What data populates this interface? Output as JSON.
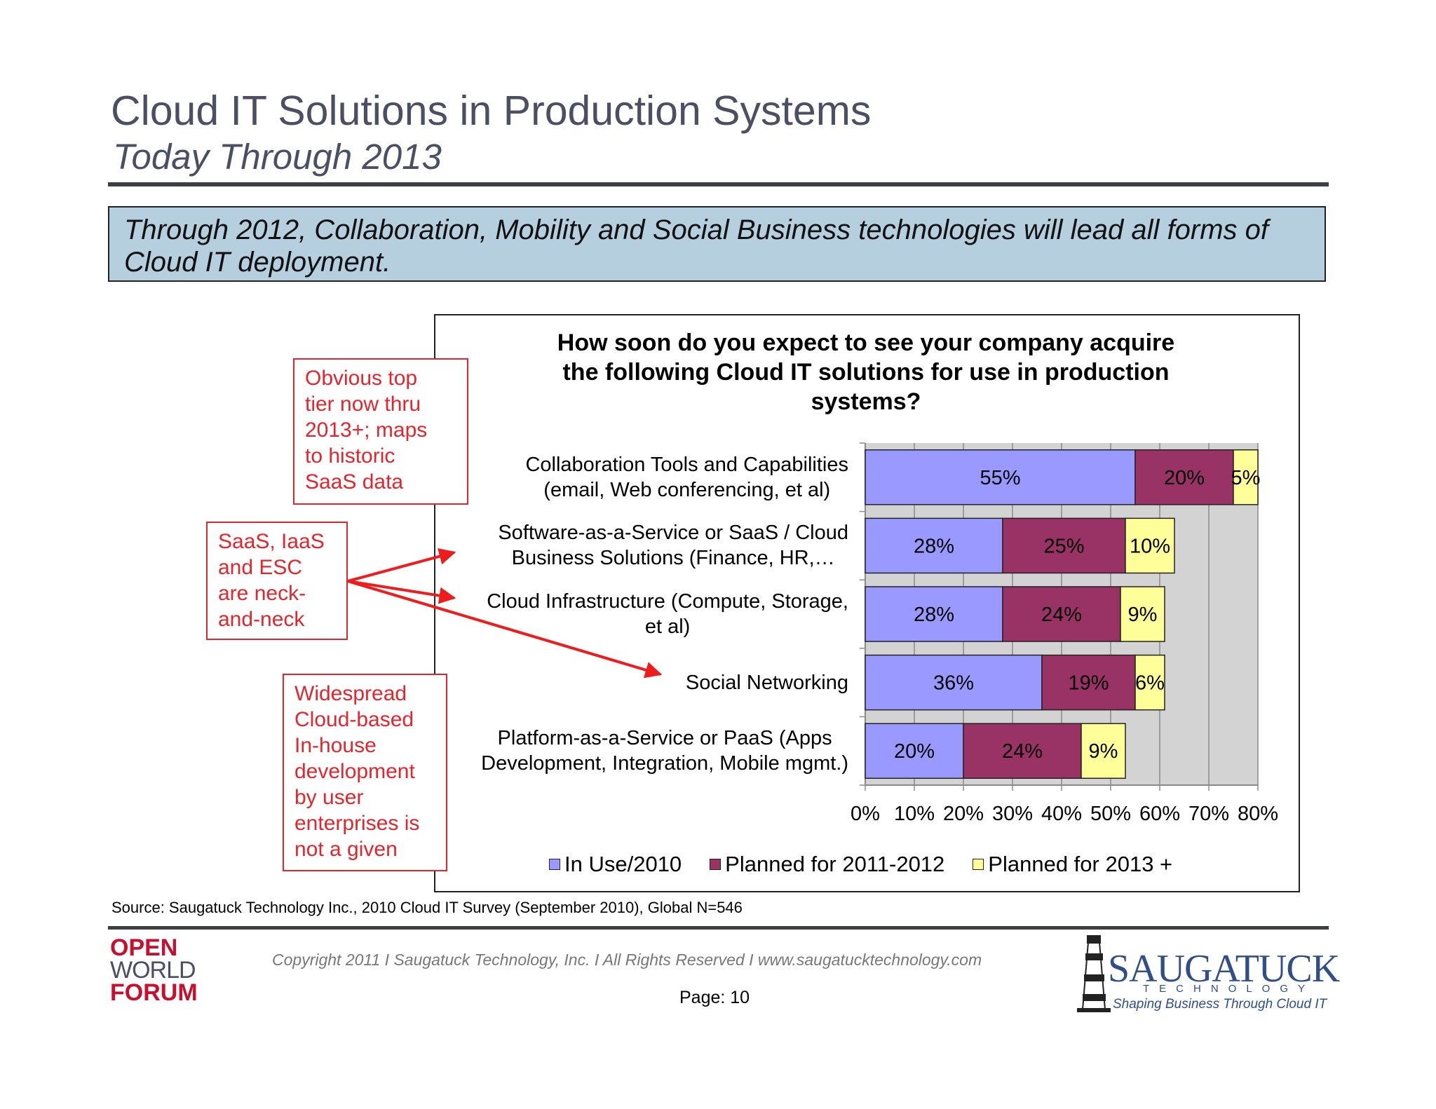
{
  "header": {
    "title": "Cloud IT Solutions in Production Systems",
    "subtitle": "Today Through 2013"
  },
  "callout": {
    "text_line1": "Through 2012, Collaboration, Mobility and Social Business  technologies will lead all forms of",
    "text_line2": "Cloud IT deployment."
  },
  "notes": {
    "top": [
      "Obvious top",
      "tier now thru",
      "2013+; maps",
      "to historic",
      "SaaS data"
    ],
    "middle": [
      "SaaS, IaaS",
      "and ESC",
      "are neck-",
      "and-neck"
    ],
    "bottom": [
      "Widespread",
      "Cloud-based",
      "In-house",
      "development",
      "by user",
      "enterprises is",
      "not a given"
    ]
  },
  "chart_data": {
    "type": "bar",
    "orientation": "horizontal",
    "stacked": true,
    "title": "How soon do you expect to see your company acquire the following Cloud IT solutions for use in production systems?",
    "title_lines": [
      "How soon do you expect to see your company acquire",
      "the following Cloud IT solutions for use in production",
      "systems?"
    ],
    "categories": [
      [
        "Collaboration Tools and Capabilities",
        "(email, Web conferencing, et al)"
      ],
      [
        "Software-as-a-Service  or SaaS / Cloud",
        "Business Solutions (Finance, HR,…"
      ],
      [
        "Cloud Infrastructure (Compute, Storage,",
        "et al)"
      ],
      [
        "Social Networking"
      ],
      [
        "Platform-as-a-Service or PaaS (Apps",
        "Development, Integration, Mobile mgmt.)"
      ]
    ],
    "series": [
      {
        "name": "In Use/2010",
        "color": "#9999ff",
        "values": [
          55,
          28,
          28,
          36,
          20
        ],
        "labels": [
          "55%",
          "28%",
          "28%",
          "36%",
          "20%"
        ]
      },
      {
        "name": "Planned for 2011-2012",
        "color": "#993366",
        "values": [
          20,
          25,
          24,
          19,
          24
        ],
        "labels": [
          "20%",
          "25%",
          "24%",
          "19%",
          "24%"
        ]
      },
      {
        "name": "Planned for 2013 +",
        "color": "#ffff99",
        "values": [
          5,
          10,
          9,
          6,
          9
        ],
        "labels": [
          "5%",
          "10%",
          "9%",
          "6%",
          "9%"
        ]
      }
    ],
    "xlim": [
      0,
      80
    ],
    "xticks": [
      "0%",
      "10%",
      "20%",
      "30%",
      "40%",
      "50%",
      "60%",
      "70%",
      "80%"
    ],
    "grid": true,
    "legend_position": "bottom"
  },
  "footer": {
    "source": "Source: Saugatuck Technology Inc., 2010 Cloud IT Survey (September 2010), Global N=546",
    "copyright": "Copyright 2011  I  Saugatuck Technology, Inc.  I   All Rights Reserved   I   www.saugatucktechnology.com",
    "page": "Page:  10",
    "logo_left": [
      "OPEN",
      "WORLD",
      "FORUM"
    ],
    "logo_right": {
      "brand": "SAUGATUCK",
      "sub": "TECHNOLOGY",
      "tagline": "Shaping Business Through Cloud IT"
    }
  }
}
